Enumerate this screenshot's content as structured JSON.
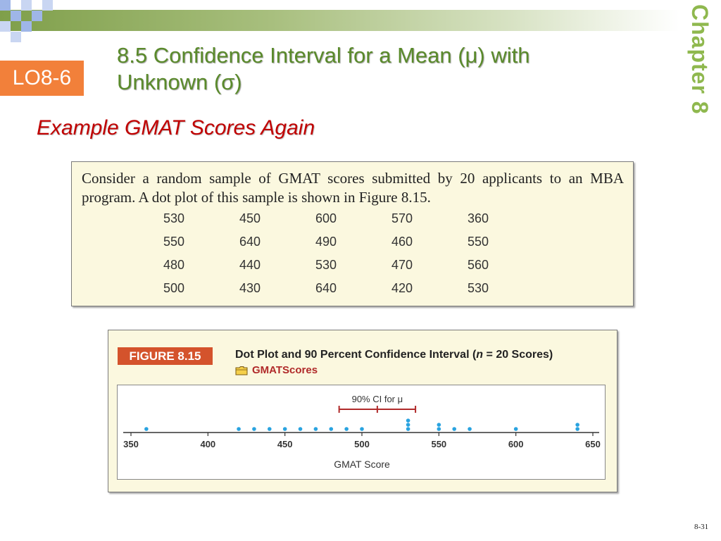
{
  "slide": {
    "lo_badge": "LO8-6",
    "title_line1": "8.5  Confidence Interval for a Mean (μ) with",
    "title_line2": "Unknown  (σ)",
    "chapter": "Chapter  8",
    "subtitle": "Example GMAT Scores Again",
    "page_number": "8-31"
  },
  "problem": {
    "text": "Consider a random sample of GMAT scores submitted by 20 applicants to an MBA program. A dot plot of this sample is shown in Figure 8.15.",
    "scores": [
      [
        530,
        450,
        600,
        570,
        360
      ],
      [
        550,
        640,
        490,
        460,
        550
      ],
      [
        480,
        440,
        530,
        470,
        560
      ],
      [
        500,
        430,
        640,
        420,
        530
      ]
    ]
  },
  "figure": {
    "tag": "FIGURE 8.15",
    "caption_pre": "Dot Plot and 90 Percent Confidence Interval (",
    "caption_n": "n",
    "caption_post": " = 20 Scores)",
    "dataset": "GMATScores"
  },
  "chart_data": {
    "type": "scatter",
    "subtype": "dot-plot",
    "xlabel": "GMAT Score",
    "xlim": [
      350,
      650
    ],
    "xticks": [
      350,
      400,
      450,
      500,
      550,
      600,
      650
    ],
    "values": [
      360,
      420,
      430,
      440,
      450,
      460,
      470,
      480,
      490,
      500,
      530,
      530,
      530,
      550,
      550,
      560,
      570,
      600,
      640,
      640
    ],
    "dot_color": "#29a3e0",
    "confidence_interval": {
      "label": "90% CI for μ",
      "lower": 485.2,
      "mean": 510.0,
      "upper": 534.8,
      "color": "#b02a2a"
    }
  }
}
